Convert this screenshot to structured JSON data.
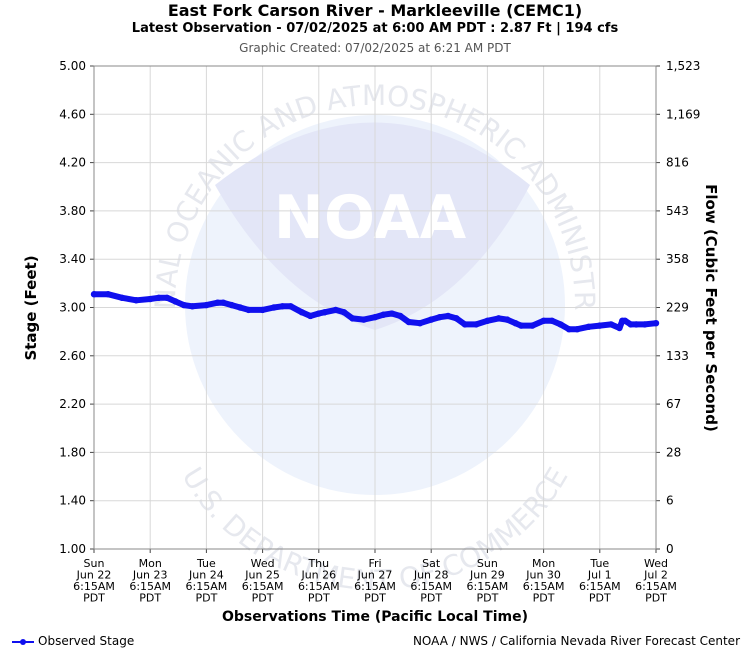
{
  "header": {
    "title": "East Fork Carson River - Markleeville (CEMC1)",
    "subtitle": "Latest Observation - 07/02/2025 at 6:00 AM PDT : 2.87 Ft | 194 cfs",
    "created": "Graphic Created: 07/02/2025 at 6:21 AM PDT"
  },
  "legend": {
    "label": "Observed Stage"
  },
  "credit": "NOAA / NWS / California Nevada River Forecast Center",
  "watermark": {
    "top_arc": "NATIONAL OCEANIC AND ATMOSPHERIC ADMINISTRATION",
    "bottom_arc": "U.S. DEPARTMENT OF COMMERCE",
    "center": "NOAA"
  },
  "colors": {
    "series": "#1010ee",
    "grid": "#d8d8d8",
    "watermark": "#e8eef9"
  },
  "chart_data": {
    "type": "line",
    "xlabel": "Observations Time (Pacific Local Time)",
    "ylabel": "Stage (Feet)",
    "y2label": "Flow (Cubic Feet per Second)",
    "ylim": [
      1.0,
      5.0
    ],
    "y_ticks": [
      "5.00",
      "4.60",
      "4.20",
      "3.80",
      "3.40",
      "3.00",
      "2.60",
      "2.20",
      "1.80",
      "1.40",
      "1.00"
    ],
    "y2_ticks": [
      "1,523",
      "1,169",
      "816",
      "543",
      "358",
      "229",
      "133",
      "67",
      "28",
      "6",
      "0"
    ],
    "x_ticks": [
      {
        "day": "Sun",
        "date": "Jun 22",
        "time": "6:15AM",
        "tz": "PDT"
      },
      {
        "day": "Mon",
        "date": "Jun 23",
        "time": "6:15AM",
        "tz": "PDT"
      },
      {
        "day": "Tue",
        "date": "Jun 24",
        "time": "6:15AM",
        "tz": "PDT"
      },
      {
        "day": "Wed",
        "date": "Jun 25",
        "time": "6:15AM",
        "tz": "PDT"
      },
      {
        "day": "Thu",
        "date": "Jun 26",
        "time": "6:15AM",
        "tz": "PDT"
      },
      {
        "day": "Fri",
        "date": "Jun 27",
        "time": "6:15AM",
        "tz": "PDT"
      },
      {
        "day": "Sat",
        "date": "Jun 28",
        "time": "6:15AM",
        "tz": "PDT"
      },
      {
        "day": "Sun",
        "date": "Jun 29",
        "time": "6:15AM",
        "tz": "PDT"
      },
      {
        "day": "Mon",
        "date": "Jun 30",
        "time": "6:15AM",
        "tz": "PDT"
      },
      {
        "day": "Tue",
        "date": "Jul 1",
        "time": "6:15AM",
        "tz": "PDT"
      },
      {
        "day": "Wed",
        "date": "Jul 2",
        "time": "6:15AM",
        "tz": "PDT"
      }
    ],
    "grid": true,
    "legend_position": "bottom-left",
    "series": [
      {
        "name": "Observed Stage",
        "x_unit": "days since Jun 22 6:15AM",
        "x": [
          0,
          0.25,
          0.5,
          0.75,
          1.0,
          1.15,
          1.3,
          1.45,
          1.6,
          1.75,
          2.0,
          2.2,
          2.3,
          2.45,
          2.6,
          2.75,
          3.0,
          3.2,
          3.35,
          3.5,
          3.7,
          3.85,
          4.0,
          4.1,
          4.3,
          4.45,
          4.6,
          4.8,
          5.0,
          5.15,
          5.3,
          5.45,
          5.6,
          5.8,
          6.0,
          6.15,
          6.3,
          6.45,
          6.6,
          6.8,
          7.0,
          7.2,
          7.35,
          7.5,
          7.6,
          7.8,
          8.0,
          8.15,
          8.3,
          8.45,
          8.6,
          8.8,
          9.0,
          9.2,
          9.35,
          9.4,
          9.45,
          9.55,
          9.65,
          9.8,
          10.0
        ],
        "y": [
          3.11,
          3.11,
          3.08,
          3.06,
          3.07,
          3.08,
          3.08,
          3.05,
          3.02,
          3.01,
          3.02,
          3.04,
          3.04,
          3.02,
          3.0,
          2.98,
          2.98,
          3.0,
          3.01,
          3.01,
          2.96,
          2.93,
          2.95,
          2.96,
          2.98,
          2.96,
          2.91,
          2.9,
          2.92,
          2.94,
          2.95,
          2.93,
          2.88,
          2.87,
          2.9,
          2.92,
          2.93,
          2.91,
          2.86,
          2.86,
          2.89,
          2.91,
          2.9,
          2.87,
          2.85,
          2.85,
          2.89,
          2.89,
          2.86,
          2.82,
          2.82,
          2.84,
          2.85,
          2.86,
          2.83,
          2.89,
          2.89,
          2.86,
          2.86,
          2.86,
          2.87
        ]
      }
    ]
  }
}
